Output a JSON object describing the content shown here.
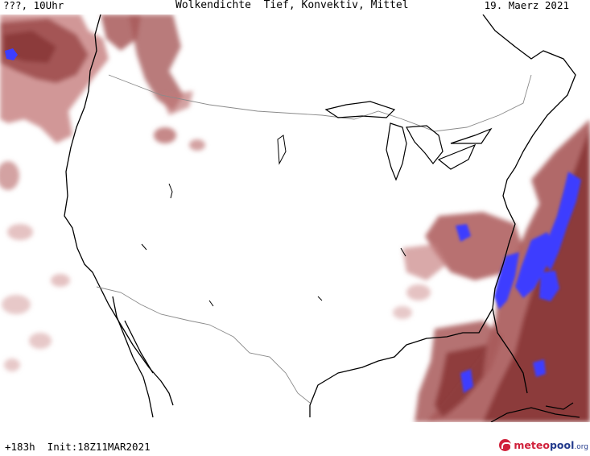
{
  "header": {
    "left": "???, 10Uhr",
    "center": "Wolkendichte  Tief, Konvektiv, Mittel",
    "right": "19. Maerz 2021"
  },
  "footer": {
    "forecast": "+183h  Init:18Z11MAR2021"
  },
  "logo": {
    "part1": "meteo",
    "part2": "pool",
    "part3": ".org",
    "icon": "meteopool-logo-icon"
  },
  "colors": {
    "cloud_light": "#d9a0a0",
    "cloud_mid": "#b86a6a",
    "cloud_dark": "#8c3a3a",
    "cloud_blue": "#3d3dff",
    "coastline": "#000000",
    "border": "#8a8a8a"
  }
}
